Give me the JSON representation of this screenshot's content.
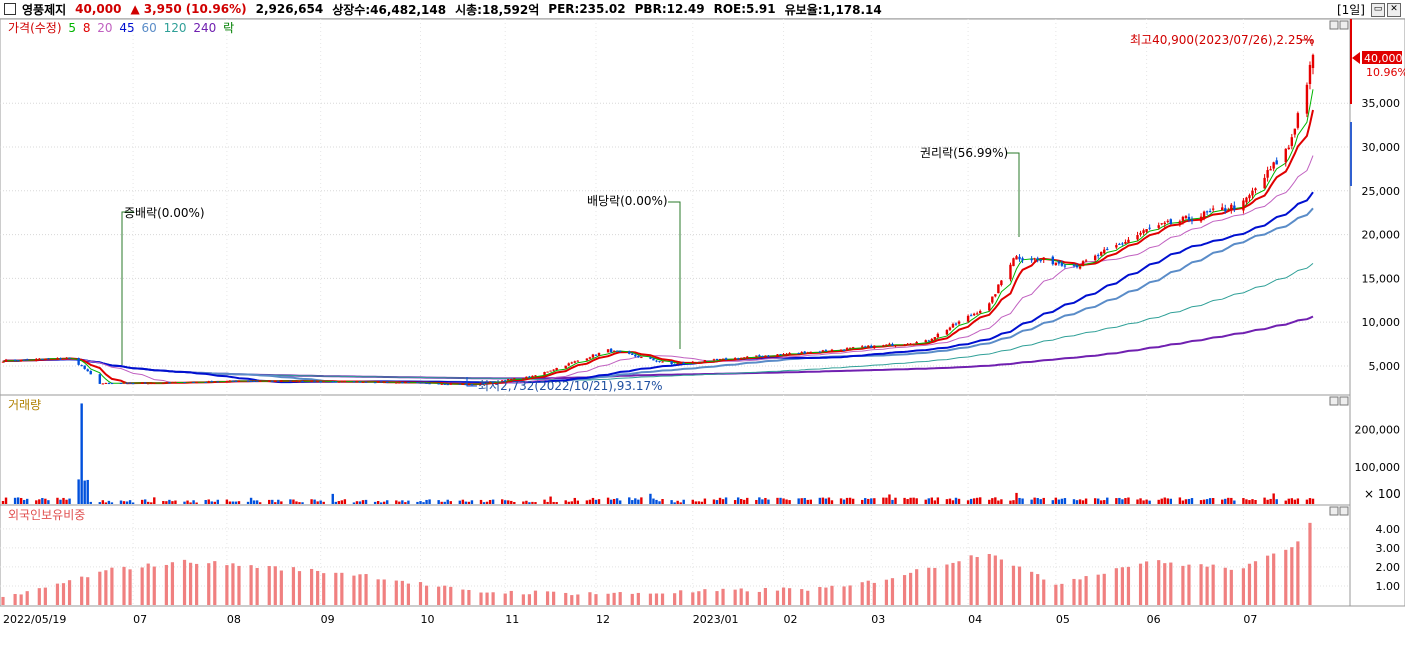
{
  "header": {
    "name": "영풍제지",
    "price": "40,000",
    "change_arrow": "▲",
    "change": "3,950",
    "change_pct": "(10.96%)",
    "volume": "2,926,654",
    "listed_shares": "상장수:46,482,148",
    "market_cap": "시총:18,592억",
    "per": "PER:235.02",
    "pbr": "PBR:12.49",
    "roe": "ROE:5.91",
    "reserve_ratio": "유보율:1,178.14",
    "period": "[1일]"
  },
  "colors": {
    "up": "#e60000",
    "down": "#0050dc",
    "ma5": "#00b400",
    "ma8": "#e00000",
    "ma20": "#c060c0",
    "ma45": "#0010d0",
    "ma60": "#5a8cc8",
    "ma120": "#30a098",
    "ma240": "#7020b0",
    "foreign": "#f08080"
  },
  "chart_data": [
    {
      "type": "candlestick",
      "title": "가격(수정)",
      "legend": [
        "5",
        "8",
        "20",
        "45",
        "60",
        "120",
        "240",
        "락"
      ],
      "ylim": [
        1800,
        44500
      ],
      "yticks": [
        "5,000",
        "10,000",
        "15,000",
        "20,000",
        "25,000",
        "30,000",
        "35,000"
      ],
      "current_price_label": "40,000",
      "current_pct_label": "10.96%",
      "x_labels": [
        "2022/05/19",
        "07",
        "08",
        "09",
        "10",
        "11",
        "12",
        "2023/01",
        "02",
        "03",
        "04",
        "05",
        "06",
        "07"
      ],
      "annotations": {
        "high": "최고40,900(2023/07/26),2.25%",
        "low": "최저2,732(2022/10/21),93.17%",
        "bonus": "증배락(0.00%)",
        "dividend": "배당락(0.00%)",
        "rights": "권리락(56.99%)"
      },
      "close_key_points": [
        {
          "date": "2022-05-19",
          "close": 5600
        },
        {
          "date": "2022-06-10",
          "close": 5900
        },
        {
          "date": "2022-06-14",
          "close": 5000
        },
        {
          "date": "2022-06-20",
          "close": 3000
        },
        {
          "date": "2022-07-15",
          "close": 3100
        },
        {
          "date": "2022-08-05",
          "close": 3300
        },
        {
          "date": "2022-09-15",
          "close": 3200
        },
        {
          "date": "2022-10-21",
          "close": 2900
        },
        {
          "date": "2022-11-10",
          "close": 3800
        },
        {
          "date": "2022-12-05",
          "close": 6800
        },
        {
          "date": "2022-12-26",
          "close": 5200
        },
        {
          "date": "2023-01-20",
          "close": 6000
        },
        {
          "date": "2023-02-20",
          "close": 6900
        },
        {
          "date": "2023-03-20",
          "close": 7800
        },
        {
          "date": "2023-04-10",
          "close": 12000
        },
        {
          "date": "2023-04-18",
          "close": 17500
        },
        {
          "date": "2023-05-10",
          "close": 16500
        },
        {
          "date": "2023-06-01",
          "close": 20500
        },
        {
          "date": "2023-07-03",
          "close": 23500
        },
        {
          "date": "2023-07-18",
          "close": 30000
        },
        {
          "date": "2023-07-26",
          "close": 40000
        }
      ]
    },
    {
      "type": "bar",
      "title": "거래량",
      "yticks": [
        "200,000",
        "100,000"
      ],
      "unit_label": "× 100",
      "ylim": [
        0,
        290000
      ],
      "peak": {
        "date": "2022-06-14",
        "value": 270000
      }
    },
    {
      "type": "bar",
      "title": "외국인보유비중",
      "yticks": [
        "4.00",
        "3.00",
        "2.00",
        "1.00"
      ],
      "ylim": [
        0,
        5.2
      ],
      "key_points": [
        {
          "date": "2022-05-19",
          "value": 0.3
        },
        {
          "date": "2022-06-25",
          "value": 1.9
        },
        {
          "date": "2022-07-20",
          "value": 2.3
        },
        {
          "date": "2022-09-15",
          "value": 1.6
        },
        {
          "date": "2022-10-20",
          "value": 0.7
        },
        {
          "date": "2022-12-10",
          "value": 0.6
        },
        {
          "date": "2023-02-20",
          "value": 0.9
        },
        {
          "date": "2023-03-10",
          "value": 1.5
        },
        {
          "date": "2023-04-10",
          "value": 2.8
        },
        {
          "date": "2023-05-01",
          "value": 1.1
        },
        {
          "date": "2023-06-01",
          "value": 2.3
        },
        {
          "date": "2023-07-03",
          "value": 1.9
        },
        {
          "date": "2023-07-20",
          "value": 3.2
        },
        {
          "date": "2023-07-26",
          "value": 4.6
        }
      ]
    }
  ]
}
